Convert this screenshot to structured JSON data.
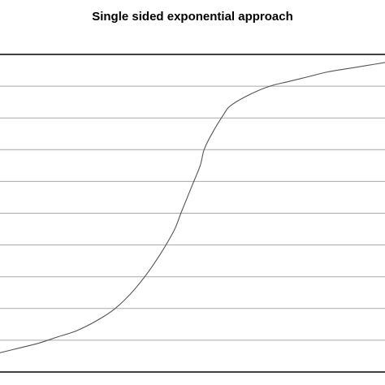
{
  "chart_data": {
    "type": "line",
    "title": "Single sided exponential approach",
    "xlabel": "",
    "ylabel": "",
    "grid": true,
    "grid_lines": 10,
    "xlim": [
      0,
      1
    ],
    "ylim": [
      0,
      1
    ],
    "colors": {
      "line": "#555555",
      "grid": "#a8a8a8",
      "axis": "#000000"
    },
    "series": [
      {
        "x": [
          0,
          0.05,
          0.1,
          0.15,
          0.2,
          0.25,
          0.3,
          0.35,
          0.4,
          0.45,
          0.47,
          0.5,
          0.52,
          0.53,
          0.55,
          0.58,
          0.6,
          0.65,
          0.7,
          0.75,
          0.8,
          0.85,
          0.9,
          0.95,
          1.0
        ],
        "y": [
          0.06,
          0.075,
          0.09,
          0.11,
          0.13,
          0.16,
          0.2,
          0.26,
          0.34,
          0.44,
          0.5,
          0.59,
          0.65,
          0.7,
          0.75,
          0.81,
          0.84,
          0.875,
          0.9,
          0.915,
          0.93,
          0.945,
          0.955,
          0.965,
          0.975
        ]
      }
    ]
  }
}
